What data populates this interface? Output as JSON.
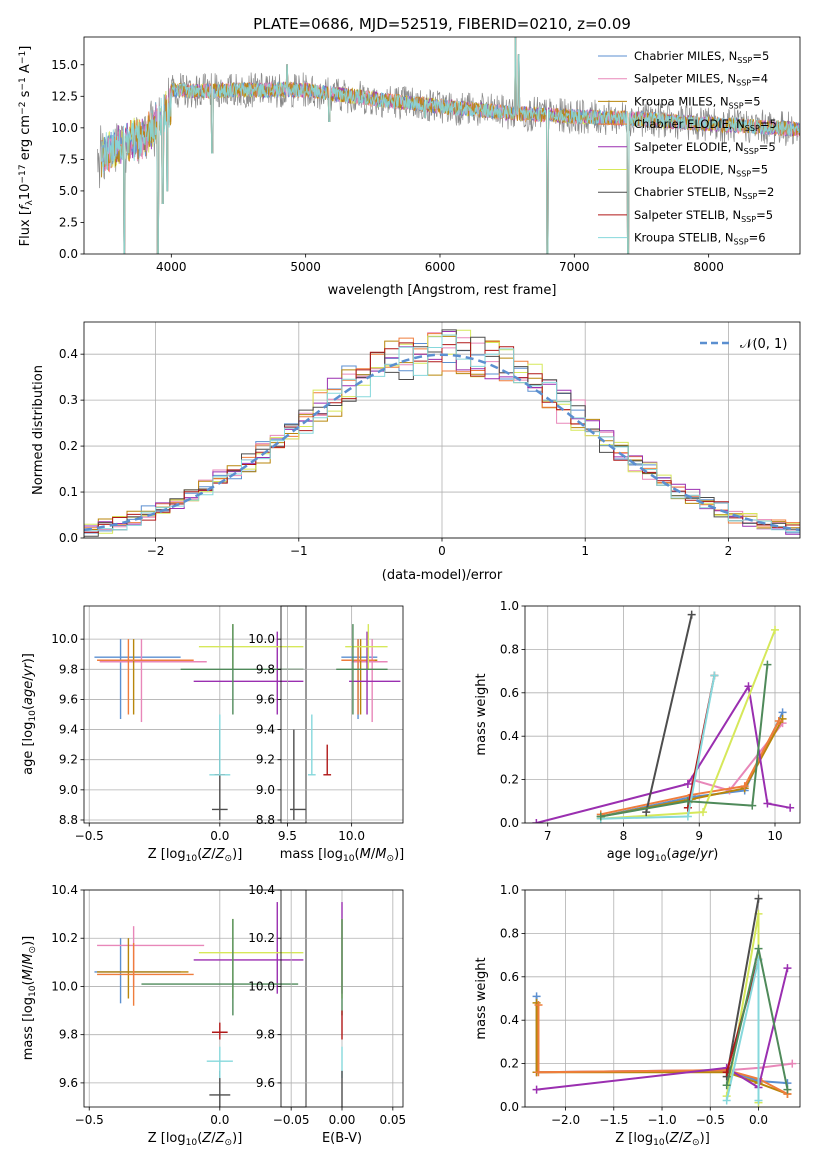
{
  "figure": {
    "title": "PLATE=0686, MJD=52519, FIBERID=0210, z=0.09"
  },
  "colors": {
    "Chabrier MILES": "#5b8fd0",
    "Salpeter MILES": "#e887b9",
    "Kroupa MILES": "#b8860b",
    "Chabrier ELODIE": "#ef7d3c",
    "Salpeter ELODIE": "#9a2fb0",
    "Kroupa ELODIE": "#d6e85a",
    "Chabrier STELIB": "#4d4d4d",
    "Salpeter STELIB": "#b01818",
    "Kroupa STELIB": "#86d8dc",
    "darkgreen": "#4f8a5a",
    "gray": "#888888"
  },
  "chart_data": [
    {
      "id": "spectrum",
      "type": "line",
      "xlabel": "wavelength [Angstrom, rest frame]",
      "ylabel": "Flux [f_λ10^-17 erg cm^-2 s^-1 A^-1]",
      "xlim": [
        3350,
        8680
      ],
      "ylim": [
        0,
        17.2
      ],
      "xticks": [
        4000,
        5000,
        6000,
        7000,
        8000
      ],
      "yticks": [
        0.0,
        2.5,
        5.0,
        7.5,
        10.0,
        12.5,
        15.0
      ],
      "grid": false,
      "legend_position": "upper right",
      "legend": [
        {
          "label": "Chabrier MILES, N_SSP=5",
          "color_key": "Chabrier MILES"
        },
        {
          "label": "Salpeter MILES, N_SSP=4",
          "color_key": "Salpeter MILES"
        },
        {
          "label": "Kroupa MILES, N_SSP=5",
          "color_key": "Kroupa MILES"
        },
        {
          "label": "Chabrier ELODIE, N_SSP=5",
          "color_key": "Chabrier ELODIE"
        },
        {
          "label": "Salpeter ELODIE, N_SSP=5",
          "color_key": "Salpeter ELODIE"
        },
        {
          "label": "Kroupa ELODIE, N_SSP=5",
          "color_key": "Kroupa ELODIE"
        },
        {
          "label": "Chabrier STELIB, N_SSP=2",
          "color_key": "Chabrier STELIB"
        },
        {
          "label": "Salpeter STELIB, N_SSP=5",
          "color_key": "Salpeter STELIB"
        },
        {
          "label": "Kroupa STELIB, N_SSP=6",
          "color_key": "Kroupa STELIB"
        }
      ],
      "continuum": [
        [
          3450,
          8.8
        ],
        [
          3600,
          9.8
        ],
        [
          3800,
          10.5
        ],
        [
          4000,
          13.0
        ],
        [
          4200,
          12.9
        ],
        [
          4500,
          13.0
        ],
        [
          5000,
          13.0
        ],
        [
          5500,
          12.3
        ],
        [
          6000,
          11.7
        ],
        [
          6500,
          11.2
        ],
        [
          7000,
          10.9
        ],
        [
          7500,
          10.7
        ],
        [
          8000,
          10.3
        ],
        [
          8500,
          10.0
        ],
        [
          8680,
          9.9
        ]
      ],
      "absorption_dips": [
        [
          3650,
          0.0
        ],
        [
          3900,
          0.0
        ],
        [
          3935,
          4.0
        ],
        [
          3970,
          5.0
        ],
        [
          4305,
          8.0
        ],
        [
          5175,
          10.5
        ],
        [
          5890,
          10.8
        ],
        [
          6800,
          0.0
        ],
        [
          7400,
          0.0
        ]
      ],
      "emission_lines": [
        [
          6563,
          17.2
        ],
        [
          6585,
          15.8
        ],
        [
          4861,
          15.0
        ]
      ]
    },
    {
      "id": "residuals",
      "type": "histogram",
      "xlabel": "(data-model)/error",
      "ylabel": "Normed distribution",
      "xlim": [
        -2.5,
        2.5
      ],
      "ylim": [
        0,
        0.47
      ],
      "xticks": [
        -2,
        -1,
        0,
        1,
        2
      ],
      "yticks": [
        0.0,
        0.1,
        0.2,
        0.3,
        0.4
      ],
      "grid": true,
      "legend_position": "upper right",
      "reference_curve": {
        "label": "N(0,1)",
        "type": "gaussian",
        "mu": 0,
        "sigma": 1,
        "color": "#5b8fd0",
        "dashed": true
      },
      "bin_width": 0.1,
      "series_color_keys": [
        "Chabrier MILES",
        "Salpeter MILES",
        "Kroupa MILES",
        "Chabrier ELODIE",
        "Salpeter ELODIE",
        "Kroupa ELODIE",
        "Chabrier STELIB",
        "Salpeter STELIB",
        "Kroupa STELIB"
      ]
    },
    {
      "id": "age_vs_Z",
      "type": "errorbar",
      "xlabel": "Z [log10(Z/Z☉)]",
      "ylabel": "age  [log10(age/yr)]",
      "xlim": [
        -0.52,
        0.33
      ],
      "ylim": [
        8.78,
        10.22
      ],
      "xticks": [
        -0.5,
        0.0
      ],
      "yticks": [
        8.8,
        9.0,
        9.2,
        9.4,
        9.6,
        9.8,
        10.0
      ],
      "grid": true,
      "points": [
        {
          "c": "Chabrier MILES",
          "x": -0.38,
          "xe": [
            -0.48,
            -0.15
          ],
          "y": 9.88,
          "ye": [
            9.47,
            10.0
          ]
        },
        {
          "c": "Salpeter MILES",
          "x": -0.3,
          "xe": [
            -0.46,
            -0.05
          ],
          "y": 9.85,
          "ye": [
            9.45,
            10.0
          ]
        },
        {
          "c": "Kroupa MILES",
          "x": -0.33,
          "xe": [
            -0.46,
            -0.12
          ],
          "y": 9.86,
          "ye": [
            9.5,
            10.0
          ]
        },
        {
          "c": "Chabrier ELODIE",
          "x": -0.35,
          "xe": [
            -0.47,
            -0.1
          ],
          "y": 9.86,
          "ye": [
            9.5,
            10.0
          ]
        },
        {
          "c": "Salpeter ELODIE",
          "x": 0.22,
          "xe": [
            -0.1,
            0.32
          ],
          "y": 9.72,
          "ye": [
            9.5,
            10.05
          ]
        },
        {
          "c": "Kroupa ELODIE",
          "x": 0.05,
          "xe": [
            -0.08,
            0.32
          ],
          "y": 9.95,
          "ye": [
            9.8,
            10.1
          ]
        },
        {
          "c": "Chabrier STELIB",
          "x": 0.0,
          "xe": [
            -0.03,
            0.03
          ],
          "y": 8.87,
          "ye": [
            8.8,
            9.4
          ]
        },
        {
          "c": "Salpeter STELIB",
          "x": 0.0,
          "xe": [
            -0.02,
            0.02
          ],
          "y": 9.1,
          "ye": [
            9.1,
            9.1
          ]
        },
        {
          "c": "Kroupa STELIB",
          "x": 0.0,
          "xe": [
            -0.04,
            0.04
          ],
          "y": 9.1,
          "ye": [
            9.1,
            9.5
          ]
        },
        {
          "c": "darkgreen",
          "x": 0.05,
          "xe": [
            -0.15,
            0.32
          ],
          "y": 9.8,
          "ye": [
            9.5,
            10.1
          ]
        }
      ]
    },
    {
      "id": "age_vs_mass",
      "type": "errorbar",
      "xlabel": "mass [log10(M/M☉)]",
      "ylabel": "",
      "xlim": [
        9.45,
        10.4
      ],
      "ylim": [
        8.78,
        10.22
      ],
      "xticks": [
        9.5,
        10.0
      ],
      "yticks": [
        8.8,
        9.0,
        9.2,
        9.4,
        9.6,
        9.8,
        10.0
      ],
      "grid": true,
      "points": [
        {
          "c": "Chabrier MILES",
          "x": 10.05,
          "xe": [
            9.92,
            10.2
          ],
          "y": 9.88,
          "ye": [
            9.47,
            10.0
          ]
        },
        {
          "c": "Salpeter MILES",
          "x": 10.16,
          "xe": [
            10.0,
            10.28
          ],
          "y": 9.85,
          "ye": [
            9.45,
            10.0
          ]
        },
        {
          "c": "Kroupa MILES",
          "x": 10.07,
          "xe": [
            9.95,
            10.2
          ],
          "y": 9.86,
          "ye": [
            9.5,
            10.0
          ]
        },
        {
          "c": "Chabrier ELODIE",
          "x": 10.05,
          "xe": [
            9.92,
            10.18
          ],
          "y": 9.86,
          "ye": [
            9.5,
            10.0
          ]
        },
        {
          "c": "Salpeter ELODIE",
          "x": 10.12,
          "xe": [
            9.98,
            10.38
          ],
          "y": 9.72,
          "ye": [
            9.5,
            10.05
          ]
        },
        {
          "c": "Kroupa ELODIE",
          "x": 10.13,
          "xe": [
            9.95,
            10.28
          ],
          "y": 9.95,
          "ye": [
            9.8,
            10.1
          ]
        },
        {
          "c": "Chabrier STELIB",
          "x": 9.55,
          "xe": [
            9.52,
            9.64
          ],
          "y": 8.87,
          "ye": [
            8.8,
            9.4
          ]
        },
        {
          "c": "Salpeter STELIB",
          "x": 9.81,
          "xe": [
            9.78,
            9.84
          ],
          "y": 9.1,
          "ye": [
            9.1,
            9.3
          ]
        },
        {
          "c": "Kroupa STELIB",
          "x": 9.69,
          "xe": [
            9.66,
            9.72
          ],
          "y": 9.1,
          "ye": [
            9.1,
            9.5
          ]
        },
        {
          "c": "darkgreen",
          "x": 10.01,
          "xe": [
            9.88,
            10.28
          ],
          "y": 9.8,
          "ye": [
            9.5,
            10.1
          ]
        }
      ]
    },
    {
      "id": "massweight_vs_age",
      "type": "line",
      "xlabel": "age  [log10(age/yr)]",
      "ylabel": "mass weight",
      "xlim": [
        6.7,
        10.33
      ],
      "ylim": [
        0,
        1.0
      ],
      "xticks": [
        7,
        8,
        9,
        10
      ],
      "yticks": [
        0.0,
        0.2,
        0.4,
        0.6,
        0.8,
        1.0
      ],
      "grid": true,
      "series": [
        {
          "c": "Chabrier MILES",
          "x": [
            7.7,
            8.9,
            9.6,
            10.1
          ],
          "y": [
            0.03,
            0.12,
            0.15,
            0.51
          ]
        },
        {
          "c": "Salpeter MILES",
          "x": [
            8.9,
            9.4,
            10.1
          ],
          "y": [
            0.2,
            0.15,
            0.46
          ]
        },
        {
          "c": "Kroupa MILES",
          "x": [
            7.7,
            8.9,
            9.6,
            10.1
          ],
          "y": [
            0.03,
            0.11,
            0.16,
            0.48
          ]
        },
        {
          "c": "Chabrier ELODIE",
          "x": [
            7.7,
            8.9,
            9.6,
            10.05
          ],
          "y": [
            0.04,
            0.13,
            0.17,
            0.47
          ]
        },
        {
          "c": "Salpeter ELODIE",
          "x": [
            6.85,
            8.85,
            9.65,
            9.9,
            10.2
          ],
          "y": [
            0.0,
            0.18,
            0.63,
            0.09,
            0.07
          ]
        },
        {
          "c": "Kroupa ELODIE",
          "x": [
            7.7,
            9.05,
            10.0
          ],
          "y": [
            0.02,
            0.05,
            0.89
          ]
        },
        {
          "c": "Chabrier STELIB",
          "x": [
            8.3,
            8.9
          ],
          "y": [
            0.05,
            0.96
          ]
        },
        {
          "c": "Salpeter STELIB",
          "x": [
            8.85,
            9.2
          ],
          "y": [
            0.07,
            0.68
          ]
        },
        {
          "c": "Kroupa STELIB",
          "x": [
            7.7,
            8.85,
            9.2
          ],
          "y": [
            0.02,
            0.03,
            0.68
          ]
        },
        {
          "c": "darkgreen",
          "x": [
            7.7,
            8.85,
            9.7,
            9.9
          ],
          "y": [
            0.03,
            0.1,
            0.08,
            0.73
          ]
        }
      ]
    },
    {
      "id": "mass_vs_Z",
      "type": "errorbar",
      "xlabel": "Z [log10(Z/Z☉)]",
      "ylabel": "mass [log10(M/M☉)]",
      "xlim": [
        -0.52,
        0.33
      ],
      "ylim": [
        9.5,
        10.4
      ],
      "xticks": [
        -0.5,
        0.0
      ],
      "yticks": [
        9.6,
        9.8,
        10.0,
        10.2,
        10.4
      ],
      "grid": true,
      "points": [
        {
          "c": "Chabrier MILES",
          "x": -0.38,
          "xe": [
            -0.48,
            -0.15
          ],
          "y": 10.06,
          "ye": [
            9.93,
            10.2
          ]
        },
        {
          "c": "Salpeter MILES",
          "x": -0.33,
          "xe": [
            -0.47,
            -0.06
          ],
          "y": 10.17,
          "ye": [
            10.0,
            10.25
          ]
        },
        {
          "c": "Kroupa MILES",
          "x": -0.35,
          "xe": [
            -0.47,
            -0.12
          ],
          "y": 10.06,
          "ye": [
            9.95,
            10.2
          ]
        },
        {
          "c": "Chabrier ELODIE",
          "x": -0.33,
          "xe": [
            -0.47,
            -0.1
          ],
          "y": 10.05,
          "ye": [
            9.92,
            10.18
          ]
        },
        {
          "c": "Salpeter ELODIE",
          "x": 0.22,
          "xe": [
            -0.1,
            0.32
          ],
          "y": 10.11,
          "ye": [
            9.97,
            10.35
          ]
        },
        {
          "c": "Kroupa ELODIE",
          "x": 0.05,
          "xe": [
            -0.08,
            0.32
          ],
          "y": 10.14,
          "ye": [
            9.95,
            10.28
          ]
        },
        {
          "c": "Chabrier STELIB",
          "x": 0.0,
          "xe": [
            -0.04,
            0.04
          ],
          "y": 9.55,
          "ye": [
            9.5,
            9.65
          ]
        },
        {
          "c": "Salpeter STELIB",
          "x": 0.0,
          "xe": [
            -0.03,
            0.03
          ],
          "y": 9.81,
          "ye": [
            9.78,
            9.85
          ]
        },
        {
          "c": "Kroupa STELIB",
          "x": 0.0,
          "xe": [
            -0.05,
            0.05
          ],
          "y": 9.69,
          "ye": [
            9.62,
            9.75
          ]
        },
        {
          "c": "darkgreen",
          "x": 0.05,
          "xe": [
            -0.3,
            0.3
          ],
          "y": 10.01,
          "ye": [
            9.88,
            10.28
          ]
        }
      ]
    },
    {
      "id": "mass_vs_EBV",
      "type": "errorbar",
      "xlabel": "E(B-V)",
      "ylabel": "",
      "xlim": [
        -0.06,
        0.06
      ],
      "ylim": [
        9.5,
        10.4
      ],
      "xticks": [
        -0.05,
        0.0,
        0.05
      ],
      "yticks": [
        9.6,
        9.8,
        10.0,
        10.2,
        10.4
      ],
      "grid": true,
      "points": [
        {
          "c": "Salpeter ELODIE",
          "x": 0.0,
          "y": 10.11,
          "ye": [
            9.97,
            10.35
          ]
        },
        {
          "c": "Kroupa ELODIE",
          "x": 0.0,
          "y": 10.14,
          "ye": [
            9.95,
            10.28
          ]
        },
        {
          "c": "darkgreen",
          "x": 0.0,
          "y": 10.01,
          "ye": [
            9.88,
            10.28
          ]
        },
        {
          "c": "Salpeter STELIB",
          "x": 0.0,
          "y": 9.81,
          "ye": [
            9.78,
            9.9
          ]
        },
        {
          "c": "Kroupa STELIB",
          "x": 0.0,
          "y": 9.69,
          "ye": [
            9.62,
            9.75
          ]
        },
        {
          "c": "Chabrier STELIB",
          "x": 0.0,
          "y": 9.55,
          "ye": [
            9.5,
            9.65
          ]
        }
      ]
    },
    {
      "id": "massweight_vs_Z",
      "type": "line",
      "xlabel": "Z [log10(Z/Z☉)]",
      "ylabel": "mass weight",
      "xlim": [
        -2.42,
        0.43
      ],
      "ylim": [
        0,
        1.0
      ],
      "xticks": [
        -2.0,
        -1.5,
        -1.0,
        -0.5,
        0.0
      ],
      "yticks": [
        0.0,
        0.2,
        0.4,
        0.6,
        0.8,
        1.0
      ],
      "grid": true,
      "series": [
        {
          "c": "Chabrier MILES",
          "x": [
            -2.3,
            -2.3,
            -0.33,
            0.0,
            0.3
          ],
          "y": [
            0.51,
            0.16,
            0.17,
            0.12,
            0.11
          ]
        },
        {
          "c": "Salpeter MILES",
          "x": [
            -2.3,
            -0.3,
            0.0,
            0.35
          ],
          "y": [
            0.16,
            0.17,
            0.18,
            0.2
          ]
        },
        {
          "c": "Kroupa MILES",
          "x": [
            -2.3,
            -2.3,
            -0.33,
            0.0,
            0.3
          ],
          "y": [
            0.48,
            0.16,
            0.16,
            0.11,
            0.06
          ]
        },
        {
          "c": "Chabrier ELODIE",
          "x": [
            -2.28,
            -2.28,
            -0.33,
            0.0,
            0.3
          ],
          "y": [
            0.47,
            0.16,
            0.17,
            0.13,
            0.06
          ]
        },
        {
          "c": "Salpeter ELODIE",
          "x": [
            -2.3,
            -0.33,
            0.0,
            0.3
          ],
          "y": [
            0.08,
            0.18,
            0.09,
            0.64
          ]
        },
        {
          "c": "Kroupa ELODIE",
          "x": [
            -0.33,
            0.0,
            0.0
          ],
          "y": [
            0.05,
            0.89,
            0.02
          ]
        },
        {
          "c": "Chabrier STELIB",
          "x": [
            -0.33,
            0.0
          ],
          "y": [
            0.14,
            0.96
          ]
        },
        {
          "c": "Salpeter STELIB",
          "x": [
            -0.33,
            0.0
          ],
          "y": [
            0.16,
            0.68
          ]
        },
        {
          "c": "Kroupa STELIB",
          "x": [
            -0.33,
            0.0,
            0.0
          ],
          "y": [
            0.03,
            0.68,
            0.03
          ]
        },
        {
          "c": "darkgreen",
          "x": [
            -0.33,
            0.0,
            0.3
          ],
          "y": [
            0.1,
            0.73,
            0.08
          ]
        }
      ]
    }
  ]
}
